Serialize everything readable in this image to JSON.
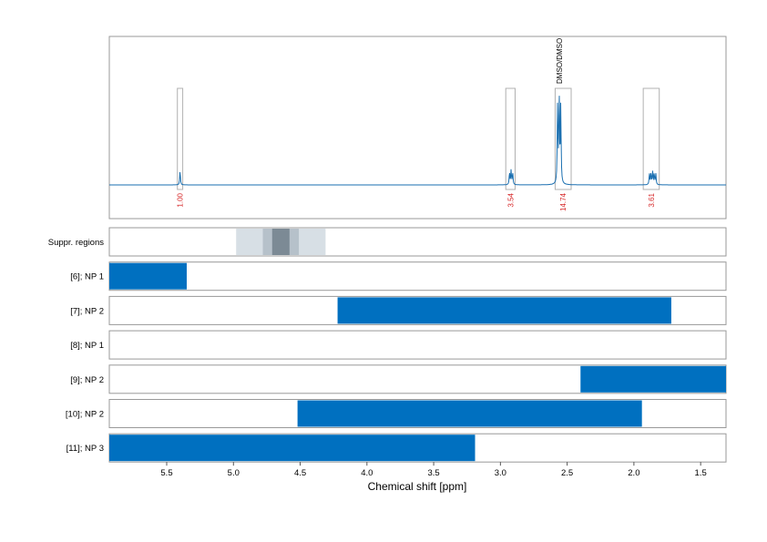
{
  "chart_data": {
    "type": "nmr_spectrum_with_range_tracks",
    "xlabel": "Chemical shift [ppm]",
    "xlim": [
      5.93,
      1.31
    ],
    "x_reversed": true,
    "xticks": [
      5.5,
      5.0,
      4.5,
      4.0,
      3.5,
      3.0,
      2.5,
      2.0,
      1.5
    ],
    "xtick_labels": [
      "5.5",
      "5.0",
      "4.5",
      "4.0",
      "3.5",
      "3.0",
      "2.5",
      "2.0",
      "1.5"
    ],
    "grid": "vertical dashed",
    "colors": {
      "spectrum": "#1a6fb0",
      "bar": "#0070c0",
      "integral": "#d62728",
      "box": "#b0b0b0"
    },
    "spectrum": {
      "peaks": [
        {
          "center": 5.4,
          "height": 0.1,
          "multiplicity": 1
        },
        {
          "center": 2.92,
          "height": 0.1,
          "multiplicity": 3
        },
        {
          "center": 2.56,
          "height": 0.63,
          "multiplicity": 3
        },
        {
          "center": 1.86,
          "height": 0.09,
          "multiplicity": 5
        }
      ],
      "integration_regions": [
        {
          "from": 5.42,
          "to": 5.38,
          "integral": "1.00"
        },
        {
          "from": 2.96,
          "to": 2.89,
          "integral": "3.54"
        },
        {
          "from": 2.59,
          "to": 2.47,
          "integral": "14.74"
        },
        {
          "from": 1.93,
          "to": 1.81,
          "integral": "3.61"
        }
      ],
      "annotation": {
        "text": "DMSO/DMSO",
        "x": 2.56
      }
    },
    "suppression_track": {
      "label": "Suppr. regions",
      "bands": [
        {
          "from": 4.98,
          "to": 4.31,
          "shade": "#d7dfe5"
        },
        {
          "from": 4.78,
          "to": 4.51,
          "shade": "#b6c1ca"
        },
        {
          "from": 4.71,
          "to": 4.58,
          "shade": "#7c8a95"
        }
      ]
    },
    "range_tracks": [
      {
        "label": "[6]; NP 1",
        "from": 5.93,
        "to": 5.35
      },
      {
        "label": "[7]; NP 2",
        "from": 4.22,
        "to": 1.72
      },
      {
        "label": "[8]; NP 1",
        "from": null,
        "to": null
      },
      {
        "label": "[9]; NP 2",
        "from": 2.4,
        "to": 1.31
      },
      {
        "label": "[10]; NP 2",
        "from": 4.52,
        "to": 1.94
      },
      {
        "label": "[11]; NP 3",
        "from": 5.93,
        "to": 3.19
      }
    ]
  }
}
